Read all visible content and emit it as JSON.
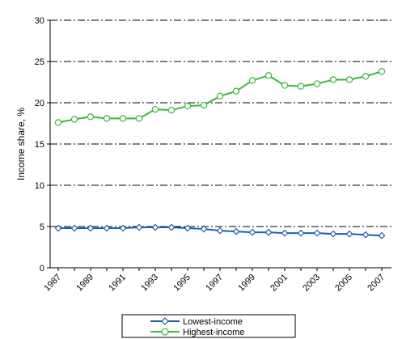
{
  "chart_data": {
    "type": "line",
    "ylabel": "Income share, %",
    "xlabel": "",
    "ylim": [
      0,
      30
    ],
    "yticks": [
      "0",
      "5",
      "10",
      "15",
      "20",
      "25",
      "30"
    ],
    "x": [
      1987,
      1988,
      1989,
      1990,
      1991,
      1992,
      1993,
      1994,
      1995,
      1996,
      1997,
      1998,
      1999,
      2000,
      2001,
      2002,
      2003,
      2004,
      2005,
      2006,
      2007
    ],
    "xtick_labels": [
      "1987",
      "1989",
      "1991",
      "1993",
      "1995",
      "1997",
      "1999",
      "2001",
      "2003",
      "2005",
      "2007"
    ],
    "grid": "horizontal dash-dot",
    "legend_position": "bottom",
    "series": [
      {
        "name": "Lowest-income",
        "color": "#1f5fa6",
        "marker": "diamond",
        "values": [
          4.8,
          4.8,
          4.8,
          4.8,
          4.8,
          4.9,
          4.9,
          4.9,
          4.8,
          4.7,
          4.5,
          4.4,
          4.3,
          4.3,
          4.2,
          4.2,
          4.2,
          4.1,
          4.1,
          4.0,
          3.9
        ]
      },
      {
        "name": "Highest-income",
        "color": "#3cb83c",
        "marker": "circle",
        "values": [
          17.6,
          18.0,
          18.3,
          18.1,
          18.1,
          18.1,
          19.2,
          19.1,
          19.6,
          19.7,
          20.8,
          21.4,
          22.7,
          23.3,
          22.1,
          22.0,
          22.3,
          22.8,
          22.8,
          23.2,
          23.8
        ]
      }
    ]
  }
}
